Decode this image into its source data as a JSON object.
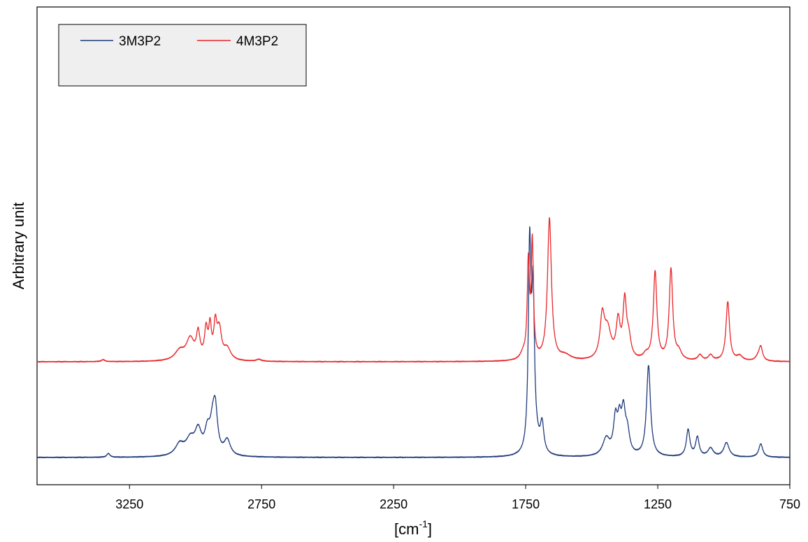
{
  "chart_data": {
    "type": "line",
    "xlabel": "[cm",
    "xlabel_sup": "-1",
    "xlabel_close": "]",
    "ylabel": "Arbitrary unit",
    "xlim": [
      3600,
      750
    ],
    "x_reversed": true,
    "y_ticks_shown": false,
    "grid": false,
    "legend_position": "top-left",
    "x_ticks": [
      "3250",
      "2750",
      "2250",
      "1750",
      "1250",
      "750"
    ],
    "x_tick_values": [
      3250,
      2750,
      2250,
      1750,
      1250,
      750
    ],
    "series": [
      {
        "name": "3M3P2",
        "color": "#1f3a7a",
        "baseline": 0.0,
        "peaks": [
          [
            3330,
            7,
            0.04
          ],
          [
            3060,
            20,
            0.12
          ],
          [
            3020,
            20,
            0.16
          ],
          [
            2990,
            15,
            0.24
          ],
          [
            2955,
            12,
            0.22
          ],
          [
            2935,
            12,
            0.28
          ],
          [
            2925,
            10,
            0.4
          ],
          [
            2880,
            14,
            0.16
          ],
          [
            1735,
            6,
            2.1
          ],
          [
            1722,
            6,
            1.55
          ],
          [
            1688,
            8,
            0.3
          ],
          [
            1710,
            15,
            0.1
          ],
          [
            1445,
            16,
            0.18
          ],
          [
            1410,
            9,
            0.36
          ],
          [
            1395,
            8,
            0.3
          ],
          [
            1380,
            9,
            0.42
          ],
          [
            1365,
            10,
            0.22
          ],
          [
            1285,
            9,
            0.95
          ],
          [
            1135,
            8,
            0.28
          ],
          [
            1100,
            8,
            0.2
          ],
          [
            1050,
            12,
            0.09
          ],
          [
            990,
            12,
            0.15
          ],
          [
            860,
            9,
            0.14
          ]
        ]
      },
      {
        "name": "4M3P2",
        "color": "#e8262a",
        "baseline": 1.0,
        "peaks": [
          [
            3350,
            8,
            0.02
          ],
          [
            3060,
            22,
            0.1
          ],
          [
            3020,
            18,
            0.22
          ],
          [
            2990,
            8,
            0.26
          ],
          [
            2960,
            7,
            0.3
          ],
          [
            2945,
            6,
            0.32
          ],
          [
            2925,
            7,
            0.34
          ],
          [
            2910,
            10,
            0.3
          ],
          [
            2880,
            16,
            0.12
          ],
          [
            2760,
            12,
            0.02
          ],
          [
            1760,
            12,
            0.06
          ],
          [
            1740,
            5,
            0.98
          ],
          [
            1725,
            5,
            1.2
          ],
          [
            1660,
            9,
            1.48
          ],
          [
            1600,
            25,
            0.05
          ],
          [
            1460,
            10,
            0.42
          ],
          [
            1440,
            16,
            0.3
          ],
          [
            1400,
            9,
            0.38
          ],
          [
            1375,
            8,
            0.58
          ],
          [
            1360,
            10,
            0.2
          ],
          [
            1295,
            12,
            0.05
          ],
          [
            1260,
            8,
            0.92
          ],
          [
            1200,
            8,
            0.95
          ],
          [
            1170,
            12,
            0.08
          ],
          [
            1090,
            10,
            0.06
          ],
          [
            1050,
            10,
            0.06
          ],
          [
            985,
            8,
            0.62
          ],
          [
            940,
            14,
            0.05
          ],
          [
            870,
            12,
            0.04
          ],
          [
            860,
            8,
            0.14
          ]
        ]
      }
    ]
  }
}
